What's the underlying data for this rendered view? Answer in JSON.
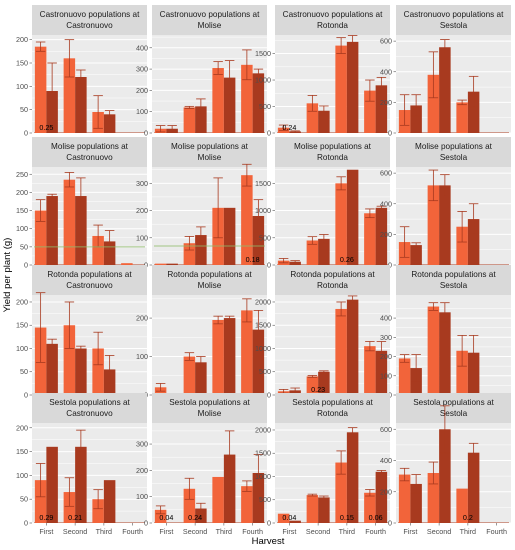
{
  "chart_data": {
    "type": "bar",
    "xlabel": "Harvest",
    "ylabel": "Yield per plant (g)",
    "categories": [
      "First",
      "Second",
      "Third",
      "Fourth"
    ],
    "colors": {
      "bar_light": "#f2643a",
      "bar_dark": "#a83a1f",
      "panel_bg": "#ebebeb",
      "strip_bg": "#d9d9d9",
      "grid": "#ffffff",
      "line_green": "#8fbc6a"
    },
    "rows": [
      {
        "name": "Castronuovo",
        "panels": [
          {
            "title": [
              "Castronuovo populations at",
              "Castronuovo"
            ],
            "ylim": [
              0,
              210
            ],
            "yticks": [
              0,
              50,
              100,
              150,
              200
            ],
            "light": [
              185,
              160,
              45,
              0
            ],
            "light_err": [
              10,
              40,
              35,
              0
            ],
            "dark": [
              90,
              120,
              40,
              0
            ],
            "dark_err": [
              60,
              15,
              8,
              0
            ],
            "annotations": [
              {
                "text": "0.25",
                "cat": 0
              }
            ],
            "green": 0
          },
          {
            "title": [
              "Castronuovo populations at",
              "Molise"
            ],
            "ylim": [
              0,
              460
            ],
            "yticks": [
              0,
              100,
              200,
              300,
              400
            ],
            "light": [
              20,
              120,
              305,
              320
            ],
            "light_err": [
              15,
              5,
              30,
              70
            ],
            "dark": [
              20,
              125,
              260,
              280
            ],
            "dark_err": [
              15,
              35,
              80,
              20
            ],
            "annotations": [],
            "green": 0
          },
          {
            "title": [
              "Castronuovo populations at",
              "Rotonda"
            ],
            "ylim": [
              0,
              1850
            ],
            "yticks": [
              0,
              500,
              1000,
              1500
            ],
            "light": [
              100,
              560,
              1650,
              800
            ],
            "light_err": [
              50,
              150,
              150,
              200
            ],
            "dark": [
              30,
              420,
              1720,
              900
            ],
            "dark_err": [
              10,
              90,
              120,
              150
            ],
            "annotations": [
              {
                "text": "0.24",
                "cat": 0
              }
            ],
            "green": 0
          },
          {
            "title": [
              "Castronuovo populations at",
              "Sestola"
            ],
            "ylim": [
              0,
              640
            ],
            "yticks": [
              0,
              200,
              400,
              600
            ],
            "light": [
              150,
              380,
              200,
              0
            ],
            "light_err": [
              100,
              150,
              15,
              0
            ],
            "dark": [
              180,
              560,
              270,
              0
            ],
            "dark_err": [
              70,
              50,
              100,
              0
            ],
            "annotations": [],
            "green": 0
          }
        ]
      },
      {
        "name": "Molise",
        "panels": [
          {
            "title": [
              "Molise populations at",
              "Castronuovo"
            ],
            "ylim": [
              0,
              270
            ],
            "yticks": [
              0,
              50,
              100,
              150,
              200,
              250
            ],
            "light": [
              150,
              235,
              80,
              5
            ],
            "light_err": [
              30,
              20,
              30,
              0
            ],
            "dark": [
              190,
              190,
              65,
              0
            ],
            "dark_err": [
              5,
              50,
              30,
              0
            ],
            "annotations": [],
            "green": 50
          },
          {
            "title": [
              "Molise populations at",
              "Molise"
            ],
            "ylim": [
              0,
              360
            ],
            "yticks": [
              0,
              100,
              200,
              300
            ],
            "light": [
              5,
              80,
              210,
              330
            ],
            "light_err": [
              0,
              25,
              110,
              40
            ],
            "dark": [
              5,
              110,
              210,
              180
            ],
            "dark_err": [
              0,
              30,
              0,
              60
            ],
            "annotations": [
              {
                "text": "0.18",
                "cat": 3
              }
            ],
            "green": 70
          },
          {
            "title": [
              "Molise populations at",
              "Rotonda"
            ],
            "ylim": [
              0,
              1800
            ],
            "yticks": [
              0,
              500,
              1000,
              1500
            ],
            "light": [
              80,
              450,
              1500,
              950
            ],
            "light_err": [
              40,
              70,
              120,
              80
            ],
            "dark": [
              60,
              480,
              1750,
              1050
            ],
            "dark_err": [
              20,
              80,
              0,
              30
            ],
            "annotations": [
              {
                "text": "0.26",
                "cat": 2
              }
            ],
            "green": 0
          },
          {
            "title": [
              "Molise populations at",
              "Sestola"
            ],
            "ylim": [
              0,
              640
            ],
            "yticks": [
              0,
              200,
              400,
              600
            ],
            "light": [
              150,
              520,
              250,
              0
            ],
            "light_err": [
              100,
              100,
              100,
              0
            ],
            "dark": [
              130,
              520,
              300,
              0
            ],
            "dark_err": [
              15,
              70,
              100,
              0
            ],
            "annotations": [],
            "green": 0
          }
        ]
      },
      {
        "name": "Rotonda",
        "panels": [
          {
            "title": [
              "Rotonda populations at",
              "Castronuovo"
            ],
            "ylim": [
              0,
              215
            ],
            "yticks": [
              0,
              50,
              100,
              150,
              200
            ],
            "light": [
              145,
              150,
              100,
              0
            ],
            "light_err": [
              75,
              50,
              35,
              0
            ],
            "dark": [
              110,
              100,
              55,
              0
            ],
            "dark_err": [
              10,
              5,
              30,
              0
            ],
            "annotations": [],
            "green": 0
          },
          {
            "title": [
              "Rotonda populations at",
              "Molise"
            ],
            "ylim": [
              0,
              260
            ],
            "yticks": [
              0,
              100,
              200
            ],
            "light": [
              20,
              100,
              195,
              220
            ],
            "light_err": [
              10,
              10,
              10,
              30
            ],
            "dark": [
              5,
              85,
              200,
              170
            ],
            "dark_err": [
              0,
              15,
              5,
              50
            ],
            "annotations": [],
            "green": 0
          },
          {
            "title": [
              "Rotonda populations at",
              "Rotonda"
            ],
            "ylim": [
              0,
              2150
            ],
            "yticks": [
              0,
              500,
              1000,
              1500,
              2000
            ],
            "light": [
              80,
              400,
              1850,
              1050
            ],
            "light_err": [
              40,
              20,
              150,
              100
            ],
            "dark": [
              100,
              500,
              2050,
              950
            ],
            "dark_err": [
              50,
              20,
              80,
              200
            ],
            "annotations": [
              {
                "text": "0.23",
                "cat": 1
              }
            ],
            "green": 0
          },
          {
            "title": [
              "Rotonda populations at",
              "Sestola"
            ],
            "ylim": [
              0,
              520
            ],
            "yticks": [
              0,
              100,
              200,
              300,
              400
            ],
            "light": [
              190,
              460,
              230,
              0
            ],
            "light_err": [
              20,
              20,
              80,
              0
            ],
            "dark": [
              140,
              430,
              220,
              0
            ],
            "dark_err": [
              70,
              50,
              90,
              0
            ],
            "annotations": [],
            "green": 0
          }
        ]
      },
      {
        "name": "Sestola",
        "panels": [
          {
            "title": [
              "Sestola populations at",
              "Castronuovo"
            ],
            "ylim": [
              0,
              210
            ],
            "yticks": [
              0,
              50,
              100,
              150,
              200
            ],
            "light": [
              90,
              65,
              50,
              0
            ],
            "light_err": [
              35,
              30,
              20,
              0
            ],
            "dark": [
              160,
              160,
              90,
              0
            ],
            "dark_err": [
              0,
              35,
              0,
              0
            ],
            "annotations": [
              {
                "text": "0.29",
                "cat": 0
              },
              {
                "text": "0.21",
                "cat": 1
              }
            ],
            "green": 0
          },
          {
            "title": [
              "Sestola populations at",
              "Molise"
            ],
            "ylim": [
              0,
              380
            ],
            "yticks": [
              0,
              100,
              200,
              300
            ],
            "light": [
              50,
              130,
              175,
              140
            ],
            "light_err": [
              15,
              40,
              0,
              20
            ],
            "dark": [
              0,
              55,
              260,
              190
            ],
            "dark_err": [
              0,
              20,
              90,
              70
            ],
            "annotations": [
              {
                "text": "0.04",
                "cat": 0
              },
              {
                "text": "0.24",
                "cat": 1
              }
            ],
            "green": 0
          },
          {
            "title": [
              "Sestola populations at",
              "Rotonda"
            ],
            "ylim": [
              0,
              2150
            ],
            "yticks": [
              0,
              500,
              1000,
              1500,
              2000
            ],
            "light": [
              200,
              600,
              1300,
              650
            ],
            "light_err": [
              0,
              20,
              250,
              70
            ],
            "dark": [
              50,
              550,
              1950,
              1100
            ],
            "dark_err": [
              0,
              30,
              100,
              30
            ],
            "annotations": [
              {
                "text": "0.04",
                "cat": 0
              },
              {
                "text": "0.15",
                "cat": 2
              },
              {
                "text": "0.06",
                "cat": 3
              }
            ],
            "green": 0
          },
          {
            "title": [
              "Sestola populations at",
              "Sestola"
            ],
            "ylim": [
              0,
              640
            ],
            "yticks": [
              0,
              200,
              400,
              600
            ],
            "light": [
              310,
              320,
              220,
              0
            ],
            "light_err": [
              40,
              70,
              0,
              0
            ],
            "dark": [
              250,
              600,
              450,
              0
            ],
            "dark_err": [
              60,
              150,
              60,
              0
            ],
            "annotations": [
              {
                "text": "0.2",
                "cat": 2
              }
            ],
            "green": 0
          }
        ]
      }
    ]
  }
}
